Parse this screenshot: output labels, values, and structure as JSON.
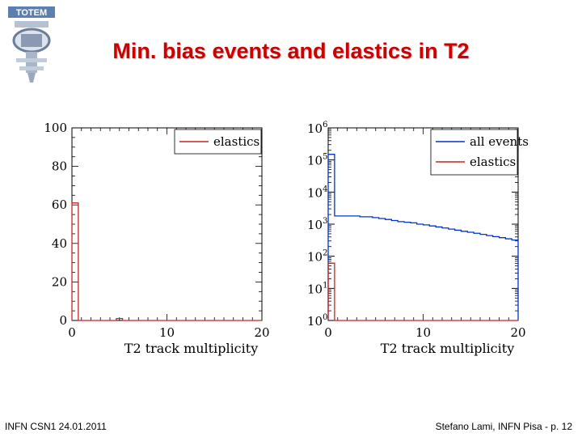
{
  "slide": {
    "title": "Min. bias events and elastics in T2",
    "logo_text": "TOTEM",
    "footer_left": "INFN CSN1  24.01.2011",
    "footer_right": "Stefano Lami, INFN Pisa  - p. 12"
  },
  "colors": {
    "title": "#cc0000",
    "all_events": "#0033cc",
    "elastics": "#cc2222"
  },
  "chart_data": [
    {
      "type": "histogram",
      "xlabel": "T2 track multiplicity",
      "ylabel": "",
      "xlim": [
        0,
        20
      ],
      "ylim": [
        0,
        100
      ],
      "xticks": [
        0,
        10,
        20
      ],
      "yticks": [
        0,
        20,
        40,
        60,
        80,
        100
      ],
      "xtick_labels": [
        "0",
        "10",
        "20"
      ],
      "ytick_labels": [
        "0",
        "20",
        "40",
        "60",
        "80",
        "100"
      ],
      "yscale": "linear",
      "legend_position": "top-right",
      "bin_edges": [
        0,
        0.67,
        1.33,
        2,
        2.67,
        3.33,
        4,
        4.67,
        5.33,
        6,
        6.67,
        7.33,
        8,
        8.67,
        9.33,
        10,
        10.67,
        11.33,
        12,
        12.67,
        13.33,
        14,
        14.67,
        15.33,
        16,
        16.67,
        17.33,
        18,
        18.67,
        19.33,
        20
      ],
      "series": [
        {
          "name": "elastics",
          "color": "#cc2222",
          "values": [
            61,
            0,
            0,
            0,
            0,
            0,
            0,
            1,
            0,
            0,
            0,
            0,
            0,
            0,
            0,
            0,
            0,
            0,
            0,
            0,
            0,
            0,
            0,
            0,
            0,
            0,
            0,
            0,
            0,
            0
          ]
        }
      ]
    },
    {
      "type": "histogram",
      "xlabel": "T2 track multiplicity",
      "ylabel": "",
      "xlim": [
        0,
        20
      ],
      "ylim": [
        1,
        1000000
      ],
      "xticks": [
        0,
        10,
        20
      ],
      "yticks": [
        1,
        10,
        100,
        1000,
        10000,
        100000,
        1000000
      ],
      "xtick_labels": [
        "0",
        "10",
        "20"
      ],
      "ytick_labels": [
        {
          "base": "10",
          "exp": "0"
        },
        {
          "base": "10",
          "exp": "1"
        },
        {
          "base": "10",
          "exp": "2"
        },
        {
          "base": "10",
          "exp": "3"
        },
        {
          "base": "10",
          "exp": "4"
        },
        {
          "base": "10",
          "exp": "5"
        },
        {
          "base": "10",
          "exp": "6"
        }
      ],
      "yscale": "log",
      "legend_position": "top-right",
      "bin_edges": [
        0,
        0.67,
        1.33,
        2,
        2.67,
        3.33,
        4,
        4.67,
        5.33,
        6,
        6.67,
        7.33,
        8,
        8.67,
        9.33,
        10,
        10.67,
        11.33,
        12,
        12.67,
        13.33,
        14,
        14.67,
        15.33,
        16,
        16.67,
        17.33,
        18,
        18.67,
        19.33,
        20
      ],
      "series": [
        {
          "name": "all events",
          "color": "#0033cc",
          "values": [
            150000,
            1800,
            1800,
            1800,
            1800,
            1700,
            1700,
            1600,
            1500,
            1400,
            1300,
            1200,
            1150,
            1100,
            1000,
            950,
            880,
            820,
            760,
            700,
            650,
            600,
            560,
            520,
            480,
            440,
            410,
            380,
            350,
            320
          ]
        },
        {
          "name": "elastics",
          "color": "#cc2222",
          "values": [
            61,
            0,
            0,
            0,
            0,
            0,
            0,
            1,
            0,
            0,
            0,
            0,
            0,
            0,
            0,
            0,
            0,
            0,
            0,
            0,
            0,
            0,
            0,
            0,
            0,
            0,
            0,
            0,
            0,
            0
          ]
        }
      ]
    }
  ]
}
